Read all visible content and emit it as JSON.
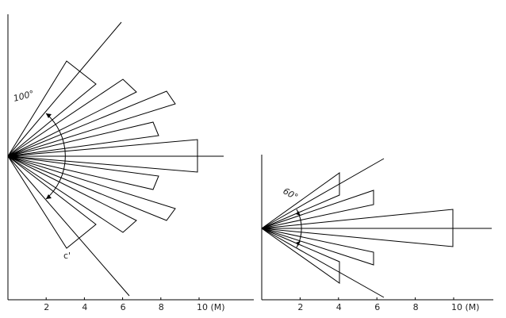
{
  "left_diagram": {
    "angle_label": "100°",
    "marker_label": "c'",
    "axis_labels": [
      "2",
      "4",
      "6",
      "8",
      "10 (M)"
    ]
  },
  "right_diagram": {
    "angle_label": "60°",
    "axis_labels": [
      "2",
      "4",
      "6",
      "8",
      "10 (M)"
    ]
  }
}
